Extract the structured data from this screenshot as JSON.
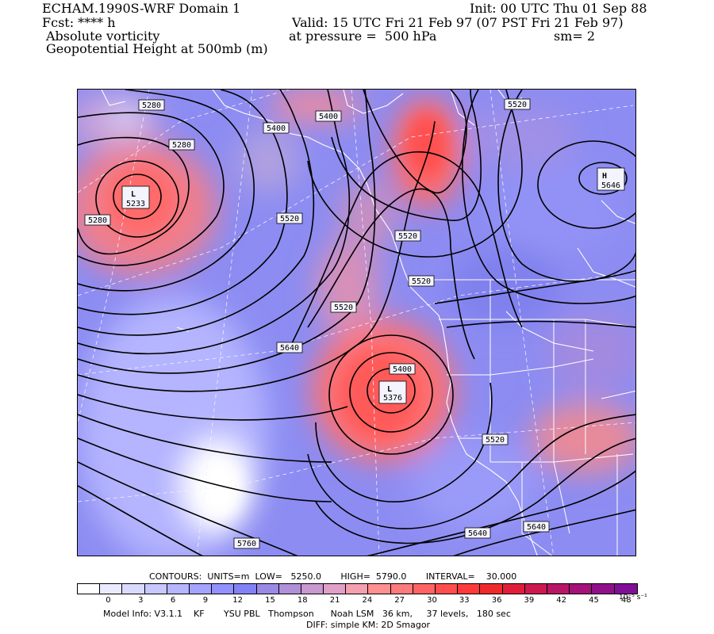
{
  "header": {
    "left_line1": "ECHAM.1990S-WRF Domain 1",
    "left_line2": "Fcst: **** h",
    "left_line3": "Absolute vorticity",
    "left_line4": "Geopotential Height at 500mb (m)",
    "init": "Init: 00 UTC Thu 01 Sep 88",
    "valid": "Valid: 15 UTC Fri 21 Feb 97 (07 PST Fri 21 Feb 97)",
    "pressure": "at pressure =  500 hPa",
    "smoothing": "sm= 2"
  },
  "map": {
    "contour_labels": {
      "c5280a": "5280",
      "c5280b": "5280",
      "c5280c": "5280",
      "c5400a": "5400",
      "c5400b": "5400",
      "c5400c": "5400",
      "c5520a": "5520",
      "c5520b": "5520",
      "c5520c": "5520",
      "c5520d": "5520",
      "c5520e": "5520",
      "c5520f": "5520",
      "c5640a": "5640",
      "c5640b": "5640",
      "c5640c": "5640",
      "c5760": "5760"
    },
    "centers": {
      "low1_letter": "L",
      "low1_value": "5233",
      "low2_letter": "L",
      "low2_value": "5376",
      "high1_letter": "H",
      "high1_value": "5646"
    }
  },
  "footer": {
    "contours": "CONTOURS:  UNITS=m  LOW=   5250.0       HIGH=  5790.0       INTERVAL=    30.000",
    "colorbar_ticks": [
      "0",
      "3",
      "6",
      "9",
      "12",
      "15",
      "18",
      "21",
      "24",
      "27",
      "30",
      "33",
      "36",
      "39",
      "42",
      "45",
      "48"
    ],
    "colorbar_unit": "10⁻⁵ s⁻¹",
    "colorbar_colors": [
      "#ffffff",
      "#ebebff",
      "#dadaff",
      "#c8c8ff",
      "#b6b6ff",
      "#a4a4ff",
      "#9292ff",
      "#8282f4",
      "#9a8ae6",
      "#b090d8",
      "#c898d0",
      "#e0a0c8",
      "#f4a0b0",
      "#ff9090",
      "#ff7a7a",
      "#ff6464",
      "#ff4e4e",
      "#ff3a3a",
      "#f02a2a",
      "#e01e3a",
      "#cc1a50",
      "#b81666",
      "#a4127a",
      "#90108a",
      "#800e96"
    ],
    "model_info": "Model Info: V3.1.1    KF       YSU PBL   Thompson      Noah LSM   36 km,     37 levels,   180 sec",
    "diff": "DIFF: simple KM: 2D Smagor"
  }
}
